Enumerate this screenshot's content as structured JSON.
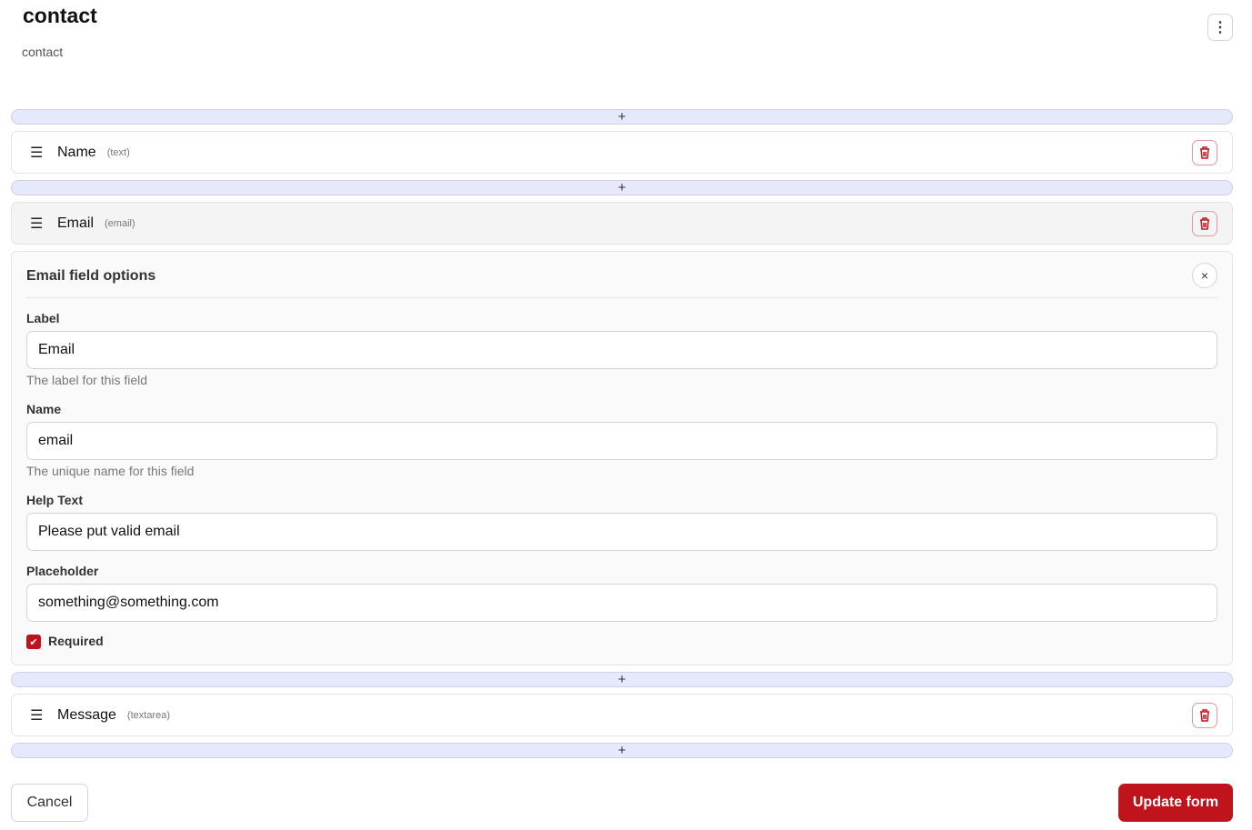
{
  "header": {
    "title": "contact",
    "subtitle": "contact",
    "more_icon": "more-vertical-icon"
  },
  "adder_label": "+",
  "fields": [
    {
      "label": "Name",
      "type": "(text)"
    },
    {
      "label": "Email",
      "type": "(email)"
    },
    {
      "label": "Message",
      "type": "(textarea)"
    }
  ],
  "options": {
    "title": "Email field options",
    "close": "×",
    "label": {
      "label": "Label",
      "value": "Email",
      "help": "The label for this field"
    },
    "name": {
      "label": "Name",
      "value": "email",
      "help": "The unique name for this field"
    },
    "help_text": {
      "label": "Help Text",
      "value": "Please put valid email"
    },
    "placeholder": {
      "label": "Placeholder",
      "value": "something@something.com"
    },
    "required": {
      "label": "Required",
      "checked": true
    }
  },
  "footer": {
    "cancel": "Cancel",
    "update": "Update form"
  },
  "colors": {
    "accent": "#c0141c",
    "adder_bg": "#e6e8fb"
  }
}
